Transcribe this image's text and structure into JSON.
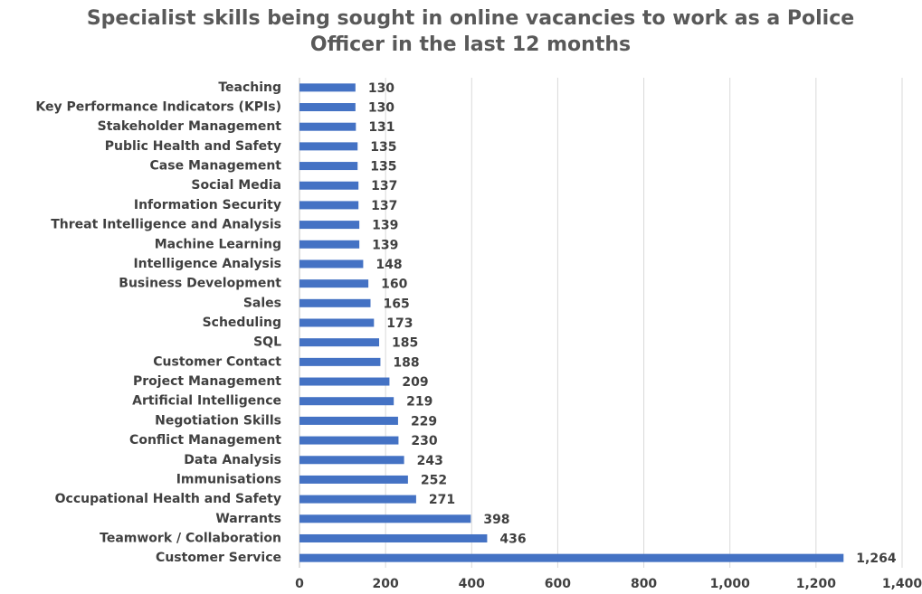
{
  "chart_data": {
    "type": "bar",
    "orientation": "horizontal",
    "title": "Specialist skills being sought in online vacancies to work as a Police Officer in the last 12 months",
    "categories": [
      "Teaching",
      "Key Performance Indicators (KPIs)",
      "Stakeholder Management",
      "Public Health and Safety",
      "Case Management",
      "Social Media",
      "Information Security",
      "Threat Intelligence and Analysis",
      "Machine Learning",
      "Intelligence Analysis",
      "Business Development",
      "Sales",
      "Scheduling",
      "SQL",
      "Customer Contact",
      "Project Management",
      "Artificial Intelligence",
      "Negotiation Skills",
      "Conflict Management",
      "Data Analysis",
      "Immunisations",
      "Occupational Health and Safety",
      "Warrants",
      "Teamwork / Collaboration",
      "Customer Service"
    ],
    "values": [
      130,
      130,
      131,
      135,
      135,
      137,
      137,
      139,
      139,
      148,
      160,
      165,
      173,
      185,
      188,
      209,
      219,
      229,
      230,
      243,
      252,
      271,
      398,
      436,
      1264
    ],
    "value_labels": [
      "130",
      "130",
      "131",
      "135",
      "135",
      "137",
      "137",
      "139",
      "139",
      "148",
      "160",
      "165",
      "173",
      "185",
      "188",
      "209",
      "219",
      "229",
      "230",
      "243",
      "252",
      "271",
      "398",
      "436",
      "1,264"
    ],
    "color": "#4472c4",
    "xlim": [
      0,
      1400
    ],
    "xticks": [
      0,
      200,
      400,
      600,
      800,
      {
        "value": 1000,
        "label": "1,000"
      },
      {
        "value": 1200,
        "label": "1,200"
      },
      {
        "value": 1400,
        "label": "1,400"
      }
    ],
    "grid": true
  }
}
